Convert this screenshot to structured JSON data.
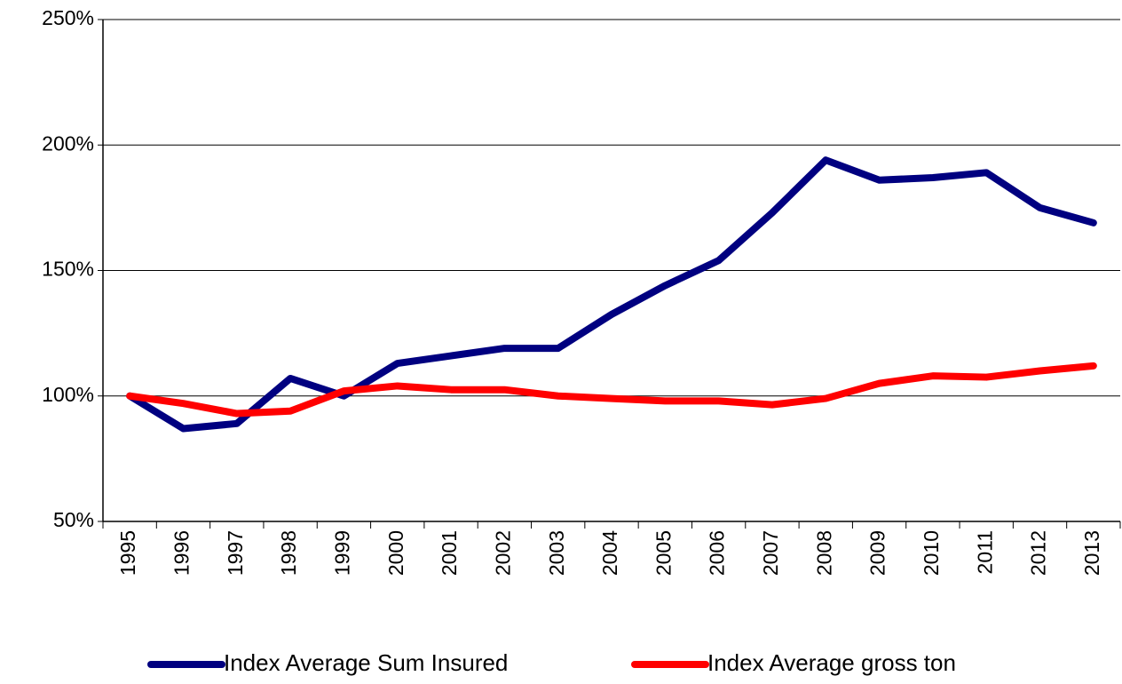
{
  "chart_data": {
    "type": "line",
    "categories": [
      "1995",
      "1996",
      "1997",
      "1998",
      "1999",
      "2000",
      "2001",
      "2002",
      "2003",
      "2004",
      "2005",
      "2006",
      "2007",
      "2008",
      "2009",
      "2010",
      "2011",
      "2012",
      "2013"
    ],
    "series": [
      {
        "name": "Index Average Sum Insured",
        "color": "#000080",
        "values": [
          100,
          87,
          89,
          107,
          100,
          113,
          116,
          119,
          119,
          132.5,
          144,
          154,
          173,
          194,
          186,
          187,
          189,
          175,
          169
        ]
      },
      {
        "name": "Index Average gross ton",
        "color": "#ff0000",
        "values": [
          100,
          97,
          93,
          94,
          102,
          104,
          102.5,
          102.5,
          100,
          99,
          98,
          98,
          96.5,
          99,
          105,
          108,
          107.5,
          110,
          112
        ]
      }
    ],
    "ylim": [
      50,
      250
    ],
    "yticks": [
      {
        "value": 50,
        "label": "50%"
      },
      {
        "value": 100,
        "label": "100%"
      },
      {
        "value": 150,
        "label": "150%"
      },
      {
        "value": 200,
        "label": "200%"
      },
      {
        "value": 250,
        "label": "250%"
      }
    ],
    "grid": true,
    "legend": "bottom"
  }
}
